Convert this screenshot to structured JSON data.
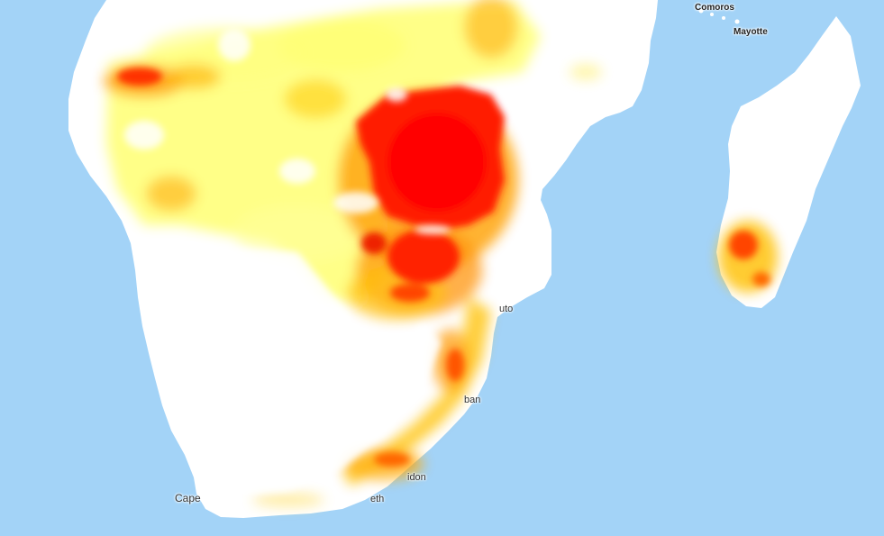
{
  "map": {
    "colors": {
      "water": "#a3d3f7",
      "land": "#ffffff",
      "heat_low": "#ffff66",
      "heat_mid": "#ffb000",
      "heat_high": "#ff0000",
      "heat_max": "#cc1a00"
    },
    "labels": {
      "comoros": "Comoros",
      "mayotte": "Mayotte",
      "maputo": "uto",
      "durban": "ban",
      "east_london": "idon",
      "port_elizabeth": "eth",
      "cape_town": "Cape"
    }
  }
}
